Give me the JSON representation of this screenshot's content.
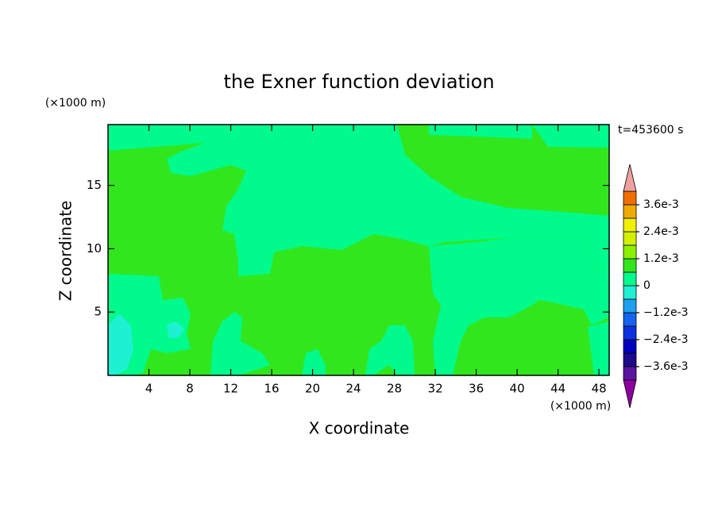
{
  "chart_data": {
    "type": "contour",
    "title": "the Exner function deviation",
    "xlabel": "X coordinate",
    "ylabel": "Z coordinate",
    "x_unit": "(×1000 m)",
    "y_unit": "(×1000 m)",
    "annotation": "t=453600 s",
    "xlim": [
      0,
      49
    ],
    "ylim": [
      0,
      19.8
    ],
    "xticks": [
      4,
      8,
      12,
      16,
      20,
      24,
      28,
      32,
      36,
      40,
      44,
      48
    ],
    "yticks": [
      5,
      10,
      15
    ],
    "colorbar": {
      "levels": [
        -0.0042,
        -0.0036,
        -0.003,
        -0.0024,
        -0.0018,
        -0.0012,
        -0.0006,
        0,
        0.0006,
        0.0012,
        0.0018,
        0.0024,
        0.003,
        0.0036,
        0.0042
      ],
      "colors": [
        "#5a14a0",
        "#1e0a8c",
        "#0000be",
        "#0a32e1",
        "#1464f0",
        "#1ea0f0",
        "#1ef0d2",
        "#00fa8c",
        "#32e61e",
        "#8cf000",
        "#d2f000",
        "#f0f000",
        "#f0aa00",
        "#f06e00",
        "#f01e00"
      ],
      "over_color": "#f0a0a0",
      "under_color": "#8c00a0",
      "ticks": [
        {
          "value": 0.0036,
          "label": "3.6e-3"
        },
        {
          "value": 0.0024,
          "label": "2.4e-3"
        },
        {
          "value": 0.0012,
          "label": "1.2e-3"
        },
        0,
        {
          "value": -0.0012,
          "label": "−1.2e-3"
        },
        {
          "value": -0.0024,
          "label": "−2.4e-3"
        },
        {
          "value": -0.0036,
          "label": "−3.6e-3"
        }
      ]
    }
  }
}
